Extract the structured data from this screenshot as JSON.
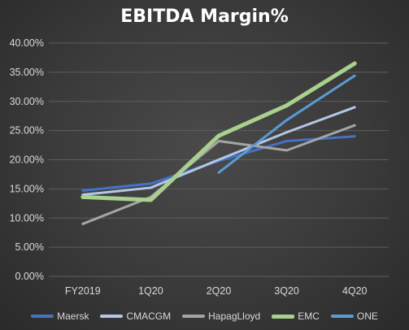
{
  "chart_data": {
    "type": "line",
    "title": "EBITDA Margin%",
    "xlabel": "",
    "ylabel": "",
    "categories": [
      "FY2019",
      "1Q20",
      "2Q20",
      "3Q20",
      "4Q20"
    ],
    "ylim": [
      0,
      40
    ],
    "yticks": [
      "0.00%",
      "5.00%",
      "10.00%",
      "15.00%",
      "20.00%",
      "25.00%",
      "30.00%",
      "35.00%",
      "40.00%"
    ],
    "grid": true,
    "legend_position": "bottom",
    "series": [
      {
        "name": "Maersk",
        "color": "#4472c4",
        "values": [
          14.7,
          15.9,
          19.8,
          23.2,
          24.0
        ]
      },
      {
        "name": "CMACGM",
        "color": "#b4c7e7",
        "values": [
          14.0,
          15.2,
          20.0,
          24.7,
          29.0
        ]
      },
      {
        "name": "HapagLloyd",
        "color": "#a5a5a5",
        "values": [
          9.0,
          13.6,
          23.2,
          21.6,
          25.9
        ]
      },
      {
        "name": "EMC",
        "color": "#a9d18e",
        "values": [
          13.6,
          13.1,
          24.1,
          29.3,
          36.5
        ]
      },
      {
        "name": "ONE",
        "color": "#5b9bd5",
        "values": [
          null,
          null,
          17.8,
          26.8,
          34.4
        ]
      }
    ]
  }
}
